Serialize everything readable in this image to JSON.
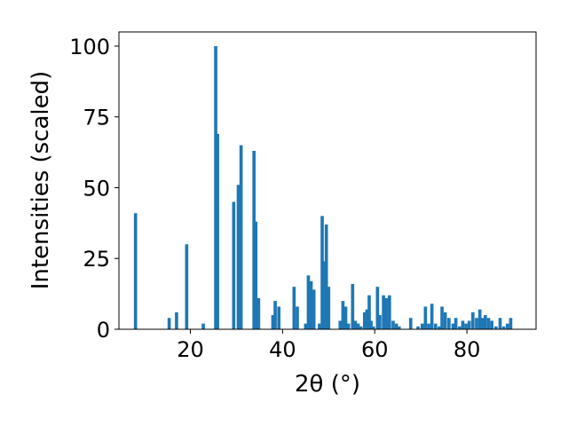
{
  "chart_data": {
    "type": "bar",
    "xlabel": "2θ (°)",
    "ylabel": "Intensities (scaled)",
    "xlim": [
      4.5,
      95
    ],
    "ylim": [
      0,
      105
    ],
    "grid": false,
    "bar_width": 0.7,
    "bar_color": "#1f77b4",
    "xticks": [
      20,
      40,
      60,
      80
    ],
    "yticks": [
      0,
      25,
      50,
      75,
      100
    ],
    "x": [
      8.1,
      15.4,
      17.0,
      19.2,
      22.8,
      25.5,
      25.9,
      29.4,
      30.4,
      31.0,
      33.8,
      34.2,
      34.8,
      37.9,
      38.4,
      39.2,
      42.5,
      43.2,
      45.0,
      45.6,
      46.2,
      46.8,
      48.0,
      48.6,
      49.1,
      49.5,
      50.0,
      52.5,
      53.1,
      53.7,
      54.3,
      55.2,
      55.8,
      56.4,
      57.0,
      57.8,
      58.3,
      58.8,
      59.2,
      59.7,
      60.6,
      61.1,
      61.9,
      62.5,
      63.2,
      64.0,
      64.7,
      65.3,
      67.8,
      69.4,
      70.3,
      71.0,
      71.7,
      72.4,
      73.2,
      74.0,
      74.6,
      75.3,
      76.1,
      77.0,
      77.6,
      78.4,
      79.1,
      79.8,
      80.5,
      81.3,
      82.1,
      82.8,
      83.4,
      84.0,
      84.7,
      85.4,
      86.3,
      87.2,
      88.0,
      88.8,
      89.5
    ],
    "values": [
      41,
      4,
      6,
      30,
      2,
      100,
      69,
      45,
      51,
      65,
      63,
      38,
      11,
      5,
      10,
      8,
      15,
      8,
      2,
      19,
      17,
      14,
      2,
      40,
      24,
      37,
      15,
      3,
      10,
      8,
      2,
      16,
      3,
      2,
      1,
      6,
      7,
      12,
      3,
      1,
      15,
      5,
      12,
      11,
      12,
      3,
      2,
      1,
      4,
      1,
      2,
      8,
      2,
      9,
      2,
      1,
      8,
      6,
      4,
      2,
      4,
      1,
      3,
      2,
      3,
      6,
      4,
      7,
      4,
      5,
      4,
      3,
      1,
      4,
      1,
      2,
      4
    ]
  }
}
